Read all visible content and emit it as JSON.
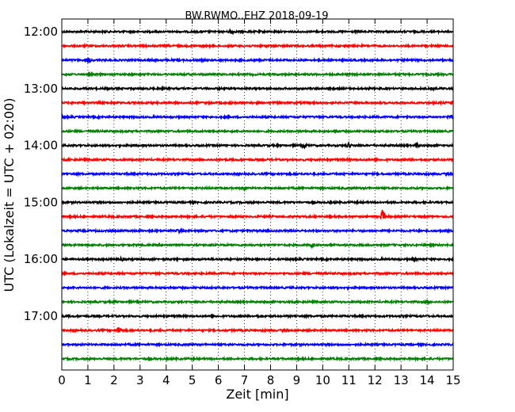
{
  "chart_data": {
    "type": "line",
    "title": "BW.RWMO..EHZ 2018-09-19",
    "xlabel": "Zeit  [min]",
    "ylabel": "UTC (Lokalzeit = UTC + 02:00)",
    "xlim": [
      0,
      15
    ],
    "x_ticks": [
      "0",
      "1",
      "2",
      "3",
      "4",
      "5",
      "6",
      "7",
      "8",
      "9",
      "10",
      "11",
      "12",
      "13",
      "14",
      "15"
    ],
    "y_ticks": [
      {
        "label": "12:00",
        "trace": 0
      },
      {
        "label": "13:00",
        "trace": 4
      },
      {
        "label": "14:00",
        "trace": 8
      },
      {
        "label": "15:00",
        "trace": 12
      },
      {
        "label": "16:00",
        "trace": 16
      },
      {
        "label": "17:00",
        "trace": 20
      }
    ],
    "grid": "vertical-dotted",
    "trace_colors": [
      "#000000",
      "#ff0000",
      "#0000ff",
      "#008000"
    ],
    "traces": [
      {
        "start": "12:00",
        "events": [
          [
            6.5,
            3
          ]
        ]
      },
      {
        "start": "12:15",
        "events": []
      },
      {
        "start": "12:30",
        "events": [
          [
            1.0,
            3
          ]
        ]
      },
      {
        "start": "12:45",
        "events": []
      },
      {
        "start": "13:00",
        "events": []
      },
      {
        "start": "13:15",
        "events": [
          [
            15.0,
            4
          ]
        ]
      },
      {
        "start": "13:30",
        "events": [
          [
            0.0,
            3
          ],
          [
            14.9,
            3
          ]
        ]
      },
      {
        "start": "13:45",
        "events": [
          [
            10.5,
            3
          ]
        ]
      },
      {
        "start": "14:00",
        "events": [
          [
            9.3,
            2
          ],
          [
            11.0,
            3
          ],
          [
            13.6,
            3
          ]
        ]
      },
      {
        "start": "14:15",
        "events": []
      },
      {
        "start": "14:30",
        "events": []
      },
      {
        "start": "14:45",
        "events": [
          [
            7.0,
            2
          ]
        ]
      },
      {
        "start": "15:00",
        "events": []
      },
      {
        "start": "15:15",
        "events": [
          [
            12.3,
            9
          ]
        ]
      },
      {
        "start": "15:30",
        "events": [
          [
            4.5,
            2
          ]
        ]
      },
      {
        "start": "15:45",
        "events": [
          [
            9.6,
            2
          ]
        ]
      },
      {
        "start": "16:00",
        "events": [
          [
            2.3,
            2
          ],
          [
            13.5,
            2
          ]
        ]
      },
      {
        "start": "16:15",
        "events": []
      },
      {
        "start": "16:30",
        "events": []
      },
      {
        "start": "16:45",
        "events": [
          [
            2.0,
            2
          ],
          [
            14.0,
            2
          ]
        ]
      },
      {
        "start": "17:00",
        "events": [
          [
            7.5,
            2
          ]
        ]
      },
      {
        "start": "17:15",
        "events": [
          [
            2.2,
            5
          ]
        ]
      },
      {
        "start": "17:30",
        "events": []
      },
      {
        "start": "17:45",
        "events": []
      }
    ]
  }
}
